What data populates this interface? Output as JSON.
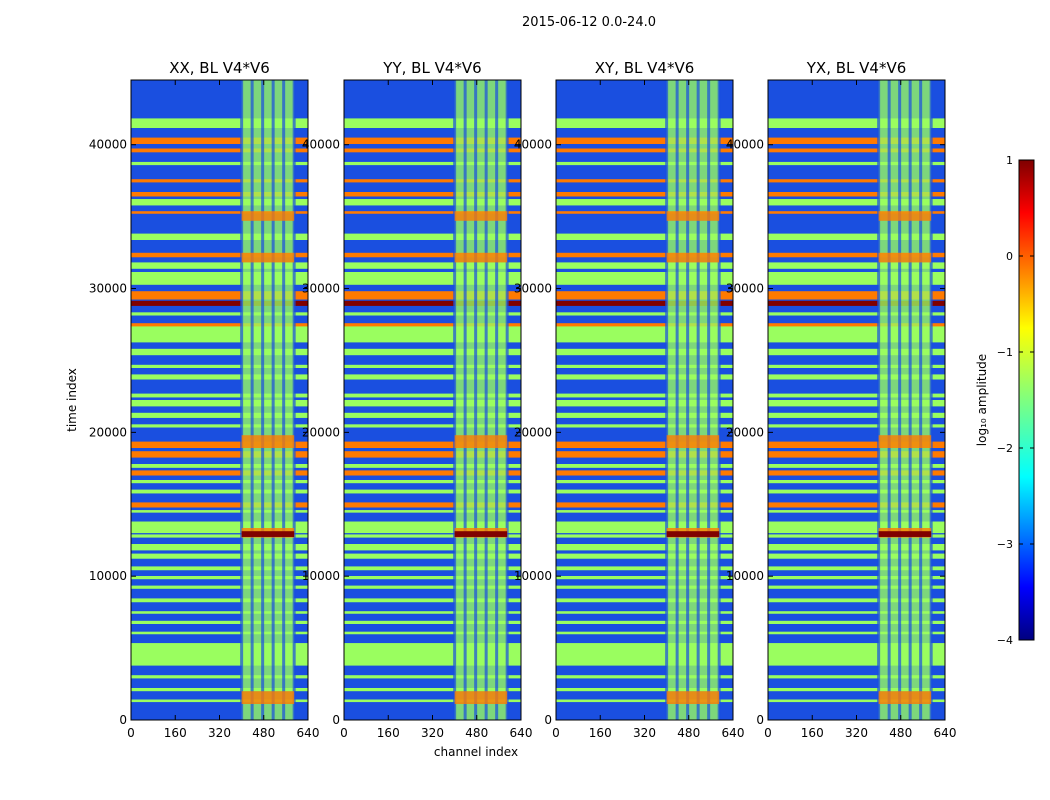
{
  "figure_title": "2015-06-12 0.0-24.0",
  "xlabel": "channel index",
  "ylabel": "time index",
  "colorbar": {
    "label": "log₁₀ amplitude",
    "ticks": [
      "1",
      "0",
      "−1",
      "−2",
      "−3",
      "−4"
    ],
    "range": [
      -4,
      1
    ],
    "colormap": "jet"
  },
  "chart_data": [
    {
      "type": "heatmap",
      "title": "XX, BL V4*V6",
      "x_ticks": [
        "0",
        "160",
        "320",
        "480",
        "640"
      ],
      "y_ticks": [
        "0",
        "10000",
        "20000",
        "30000",
        "40000"
      ],
      "xlim": [
        0,
        640
      ],
      "ylim": [
        0,
        44500
      ],
      "band_channels": [
        [
          400,
          590
        ]
      ]
    },
    {
      "type": "heatmap",
      "title": "YY, BL V4*V6",
      "x_ticks": [
        "0",
        "160",
        "320",
        "480",
        "640"
      ],
      "y_ticks": [
        "0",
        "10000",
        "20000",
        "30000",
        "40000"
      ],
      "xlim": [
        0,
        640
      ],
      "ylim": [
        0,
        44500
      ],
      "band_channels": [
        [
          400,
          590
        ]
      ]
    },
    {
      "type": "heatmap",
      "title": "XY, BL V4*V6",
      "x_ticks": [
        "0",
        "160",
        "320",
        "480",
        "640"
      ],
      "y_ticks": [
        "0",
        "10000",
        "20000",
        "30000",
        "40000"
      ],
      "xlim": [
        0,
        640
      ],
      "ylim": [
        0,
        44500
      ],
      "band_channels": [
        [
          400,
          590
        ]
      ]
    },
    {
      "type": "heatmap",
      "title": "YX, BL V4*V6",
      "x_ticks": [
        "0",
        "160",
        "320",
        "480",
        "640"
      ],
      "y_ticks": [
        "0",
        "10000",
        "20000",
        "30000",
        "40000"
      ],
      "xlim": [
        0,
        640
      ],
      "ylim": [
        0,
        44500
      ],
      "band_channels": [
        [
          400,
          590
        ]
      ]
    }
  ],
  "colors": {
    "background": "#000080",
    "noise": "#1a4fe0",
    "flagged": "#9afe5f",
    "hot": "#ff7a00",
    "max": "#800000"
  }
}
